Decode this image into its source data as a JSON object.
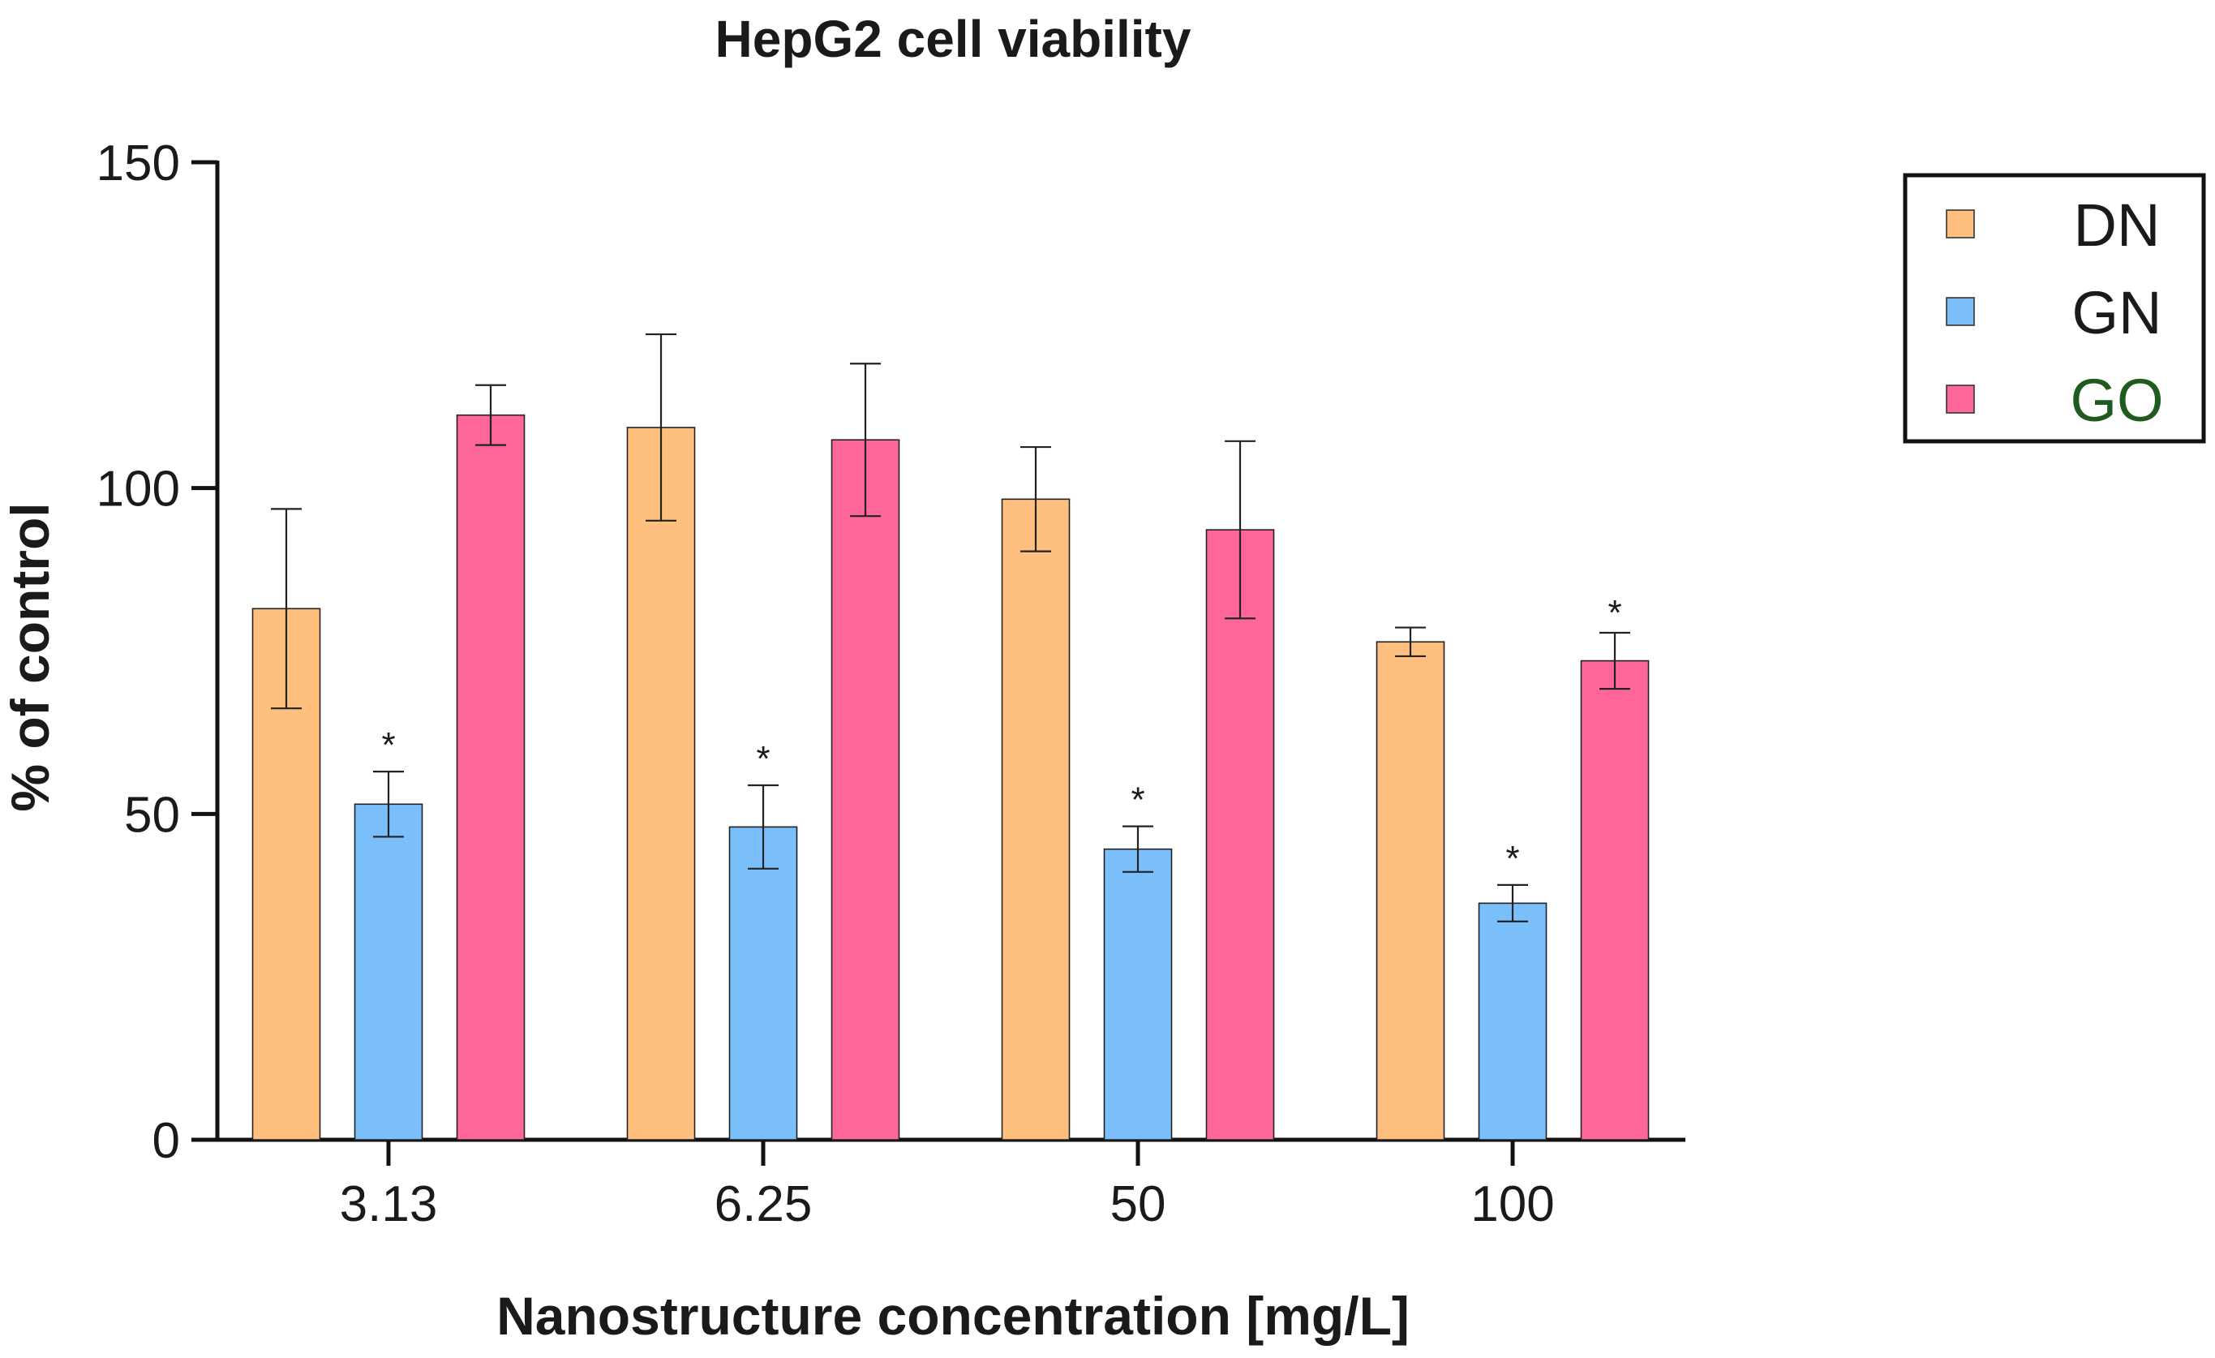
{
  "chart_data": {
    "type": "bar",
    "title": "HepG2 cell viability",
    "xlabel": "Nanostructure concentration [mg/L]",
    "ylabel": "% of control",
    "ylim": [
      0,
      150
    ],
    "yticks": [
      0,
      50,
      100,
      150
    ],
    "categories": [
      "3.13",
      "6.25",
      "50",
      "100"
    ],
    "series": [
      {
        "name": "DN",
        "color": "#FFC07F",
        "values": [
          81.5,
          109.3,
          98.3,
          76.4
        ],
        "errors": [
          15.3,
          14.3,
          8.0,
          2.2
        ],
        "significance": [
          "",
          "",
          "",
          ""
        ]
      },
      {
        "name": "GN",
        "color": "#7ABFFA",
        "values": [
          51.5,
          48.0,
          44.6,
          36.3
        ],
        "errors": [
          5.0,
          6.4,
          3.5,
          2.8
        ],
        "significance": [
          "*",
          "*",
          "*",
          "*"
        ]
      },
      {
        "name": "GO",
        "color": "#FF6699",
        "labelColor": "#1F5A1F",
        "values": [
          111.2,
          107.4,
          93.6,
          73.5
        ],
        "errors": [
          4.6,
          11.7,
          13.6,
          4.3
        ],
        "significance": [
          "",
          "",
          "",
          "*"
        ]
      }
    ],
    "legend_position": "top-right",
    "grid": false
  }
}
